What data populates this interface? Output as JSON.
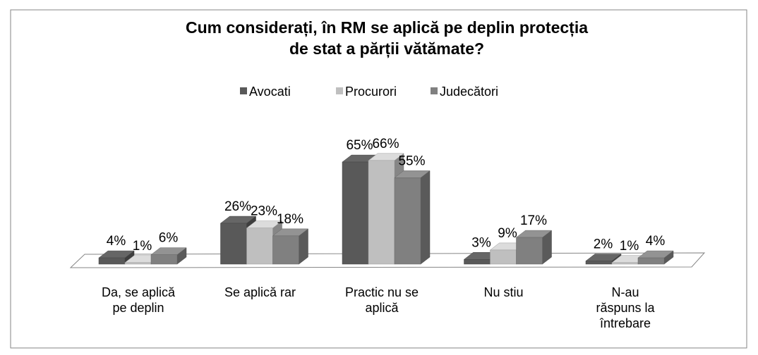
{
  "chart_data": {
    "type": "bar3d",
    "title": "Cum considerați, în RM se aplică pe deplin protecția de stat a părții vătămate?",
    "categories": [
      "Da, se aplică pe deplin",
      "Se aplică rar",
      "Practic nu se aplică",
      "Nu stiu",
      "N-au răspuns la întrebare"
    ],
    "series": [
      {
        "name": "Avocati",
        "color": "#595959",
        "values": [
          4,
          26,
          65,
          3,
          2
        ],
        "value_labels": [
          "4%",
          "26%",
          "65%",
          "3%",
          "2%"
        ]
      },
      {
        "name": "Procurori",
        "color": "#bfbfbf",
        "values": [
          1,
          23,
          66,
          9,
          1
        ],
        "value_labels": [
          "1%",
          "23%",
          "66%",
          "9%",
          "1%"
        ]
      },
      {
        "name": "Judecători",
        "color": "#808080",
        "values": [
          6,
          18,
          55,
          17,
          4
        ],
        "value_labels": [
          "6%",
          "18%",
          "55%",
          "17%",
          "4%"
        ]
      }
    ],
    "legend": "top"
  }
}
